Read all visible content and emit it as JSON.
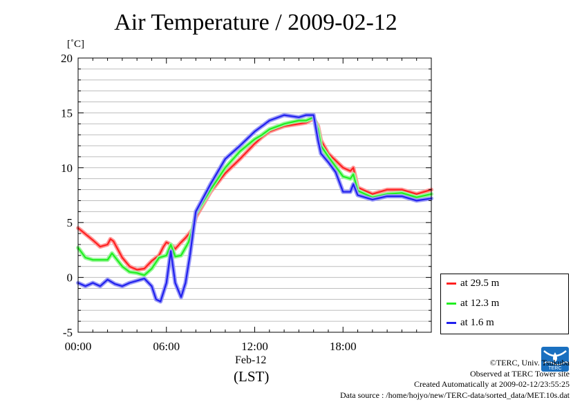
{
  "chart_data": {
    "type": "line",
    "title": "Air Temperature / 2009-02-12",
    "ylabel": "[˚C]",
    "xlabel": "(LST)",
    "xdate_label": "Feb-12",
    "ylim": [
      -5,
      20
    ],
    "xlim": [
      0,
      24
    ],
    "yticks": [
      -5,
      0,
      5,
      10,
      15,
      20
    ],
    "ytick_labels": [
      "-5",
      "0",
      "5",
      "10",
      "15",
      "20"
    ],
    "xticks": [
      0,
      6,
      12,
      18
    ],
    "xtick_labels": [
      "00:00",
      "06:00",
      "12:00",
      "18:00"
    ],
    "grid": true,
    "legend_position": "bottom-right",
    "series": [
      {
        "name": "at 29.5 m",
        "color": "#ff2020",
        "x": [
          0,
          1,
          1.5,
          2,
          2.2,
          2.4,
          3,
          3.5,
          4,
          4.5,
          5,
          5.5,
          5.8,
          6,
          6.3,
          6.6,
          7,
          7.3,
          7.8,
          8,
          9,
          10,
          11,
          12,
          12.5,
          13,
          14,
          15,
          15.5,
          16,
          16.3,
          16.5,
          17,
          18,
          18.5,
          18.7,
          19,
          20,
          21,
          22,
          23,
          24
        ],
        "y": [
          4.5,
          3.4,
          2.8,
          3.0,
          3.5,
          3.3,
          1.8,
          1.0,
          0.7,
          0.8,
          1.5,
          2.0,
          2.8,
          3.2,
          3.0,
          2.6,
          3.2,
          3.6,
          4.4,
          5.5,
          7.8,
          9.5,
          10.8,
          12.2,
          12.8,
          13.3,
          13.8,
          14.0,
          14.1,
          14.5,
          13.8,
          12.5,
          11.3,
          10.0,
          9.7,
          10.0,
          8.2,
          7.6,
          8.0,
          8.0,
          7.6,
          8.0
        ]
      },
      {
        "name": "at 12.3 m",
        "color": "#20ee20",
        "x": [
          0,
          0.5,
          1,
          2,
          2.3,
          3,
          3.5,
          4,
          4.5,
          5,
          5.5,
          6,
          6.3,
          6.6,
          7,
          7.5,
          7.8,
          8,
          9,
          10,
          11,
          12,
          12.5,
          13,
          14,
          15,
          15.5,
          16,
          16.3,
          16.5,
          17,
          18,
          18.5,
          18.7,
          19,
          20,
          21,
          22,
          23,
          24
        ],
        "y": [
          2.7,
          1.8,
          1.6,
          1.6,
          2.2,
          1.0,
          0.5,
          0.4,
          0.2,
          0.8,
          1.8,
          2.0,
          3.0,
          1.9,
          2.0,
          3.2,
          4.5,
          5.8,
          8.0,
          10.0,
          11.5,
          12.6,
          13.0,
          13.5,
          14.0,
          14.3,
          14.3,
          14.6,
          13.5,
          12.0,
          11.0,
          9.2,
          9.0,
          9.4,
          7.9,
          7.3,
          7.6,
          7.7,
          7.3,
          7.6
        ]
      },
      {
        "name": "at 1.6 m",
        "color": "#2020ee",
        "x": [
          0,
          0.5,
          1,
          1.5,
          2,
          2.5,
          3,
          3.5,
          4,
          4.5,
          5,
          5.3,
          5.6,
          6,
          6.3,
          6.6,
          7,
          7.3,
          7.6,
          8,
          9,
          10,
          11,
          12,
          12.5,
          13,
          14,
          15,
          15.5,
          16,
          16.3,
          16.5,
          17,
          17.5,
          18,
          18.5,
          18.7,
          19,
          20,
          21,
          22,
          23,
          24
        ],
        "y": [
          -0.5,
          -0.8,
          -0.5,
          -0.8,
          -0.2,
          -0.6,
          -0.8,
          -0.5,
          -0.3,
          -0.1,
          -0.8,
          -2.0,
          -2.2,
          -0.5,
          2.4,
          -0.5,
          -1.8,
          -0.5,
          2.0,
          6.0,
          8.5,
          10.8,
          12.0,
          13.3,
          13.8,
          14.3,
          14.8,
          14.6,
          14.8,
          14.8,
          12.5,
          11.3,
          10.5,
          9.6,
          7.8,
          7.8,
          8.5,
          7.5,
          7.1,
          7.4,
          7.4,
          7.0,
          7.2
        ]
      }
    ]
  },
  "credits": {
    "copyright": "©TERC, Univ. Tsukuba",
    "observed": "Observed at TERC Tower site",
    "created": "Created Automatically at 2009-02-12/23:55:25",
    "source": "Data source : /home/hojyo/new/TERC-data/sorted_data/MET.10s.dat"
  },
  "logo": {
    "text": "TERC",
    "color": "#1a70c0"
  }
}
